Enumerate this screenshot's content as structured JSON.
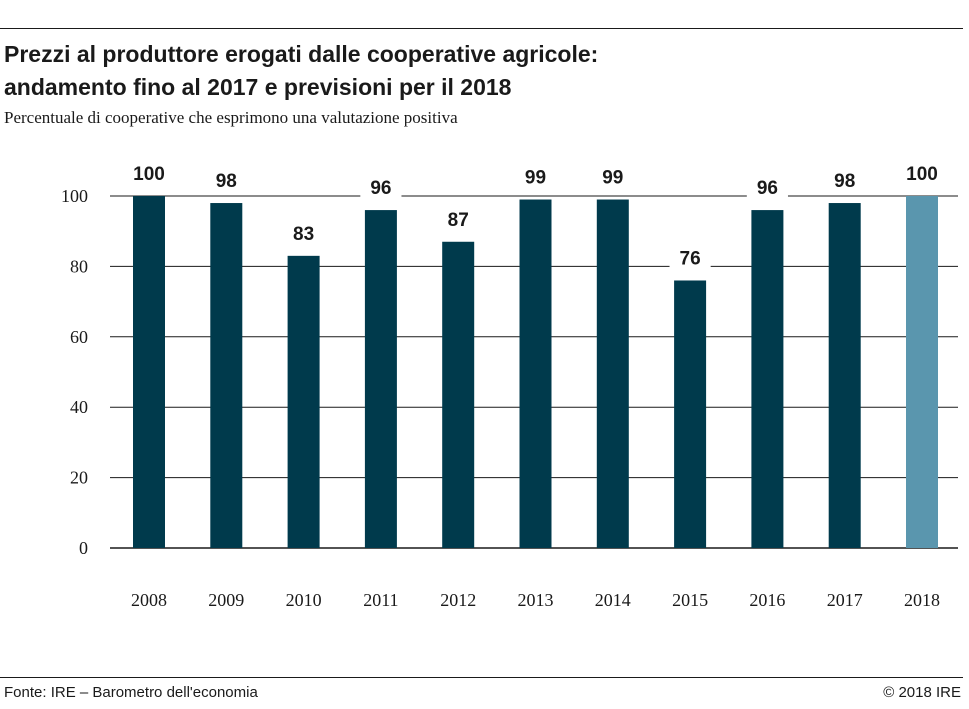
{
  "title_lines": [
    "Prezzi al produttore erogati dalle cooperative agricole:",
    "andamento fino al 2017 e previsioni per il 2018"
  ],
  "subtitle": "Percentuale di cooperative che esprimono una valutazione positiva",
  "source": "Fonte: IRE – Barometro dell'economia",
  "copyright": "© 2018 IRE",
  "colors": {
    "actual": "#003a4c",
    "forecast": "#5a96ae",
    "grid": "#1a1a1a"
  },
  "chart_data": {
    "type": "bar",
    "categories": [
      "2008",
      "2009",
      "2010",
      "2011",
      "2012",
      "2013",
      "2014",
      "2015",
      "2016",
      "2017",
      "2018"
    ],
    "values": [
      100,
      98,
      83,
      96,
      87,
      99,
      99,
      76,
      96,
      98,
      100
    ],
    "data_labels": [
      "100",
      "98",
      "83",
      "96",
      "87",
      "99",
      "99",
      "76",
      "96",
      "98",
      "100"
    ],
    "forecast_categories": [
      "2018"
    ],
    "ylim": [
      0,
      100
    ],
    "yticks": [
      0,
      20,
      40,
      60,
      80,
      100
    ],
    "grid": true,
    "legend": false
  }
}
